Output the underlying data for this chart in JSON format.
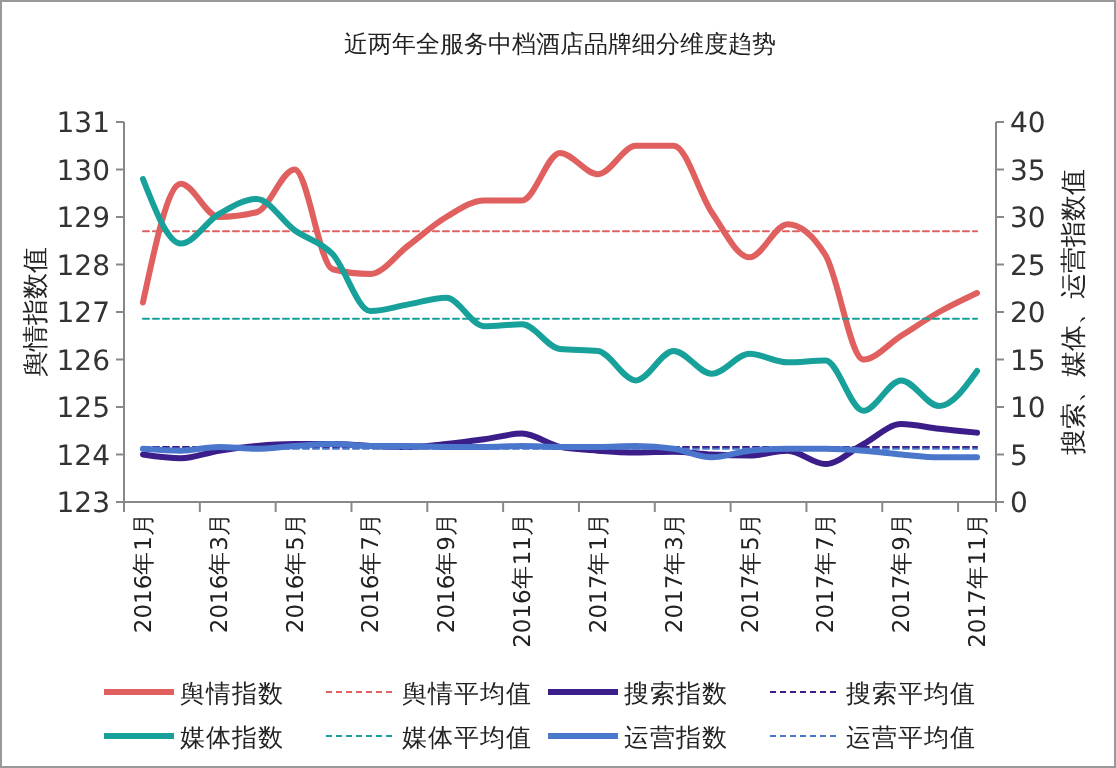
{
  "chart_data": {
    "type": "line",
    "title": "近两年全服务中档酒店品牌细分维度趋势",
    "ylabel": "舆情指数值",
    "y2label": "搜索、媒体、运营指数值",
    "categories": [
      "2016年1月",
      null,
      "2016年3月",
      null,
      "2016年5月",
      null,
      "2016年7月",
      null,
      "2016年9月",
      null,
      "2016年11月",
      null,
      "2017年1月",
      null,
      "2017年3月",
      null,
      "2017年5月",
      null,
      "2017年7月",
      null,
      "2017年9月",
      null,
      "2017年11月"
    ],
    "ylim": [
      123,
      131
    ],
    "yticks": [
      123,
      124,
      125,
      126,
      127,
      128,
      129,
      130,
      131
    ],
    "y2lim": [
      0,
      40
    ],
    "y2ticks": [
      0,
      5,
      10,
      15,
      20,
      25,
      30,
      35,
      40
    ],
    "legend": "bottom",
    "grid": false,
    "series": [
      {
        "name": "舆情指数",
        "color": "#e06060",
        "line_style": "solid",
        "values": [
          127.2,
          129.7,
          129.0,
          129.1,
          130.0,
          127.9,
          127.8,
          128.4,
          129.0,
          129.35,
          129.35,
          130.35,
          129.9,
          130.5,
          130.5,
          129.1,
          128.15,
          128.85,
          128.2,
          126.0,
          126.5,
          127.0,
          127.4
        ]
      },
      {
        "name": "舆情平均值",
        "color": "#e06060",
        "line_style": "dashed",
        "values": [
          128.7,
          128.7,
          128.7,
          128.7,
          128.7,
          128.7,
          128.7,
          128.7,
          128.7,
          128.7,
          128.7,
          128.7,
          128.7,
          128.7,
          128.7,
          128.7,
          128.7,
          128.7,
          128.7,
          128.7,
          128.7,
          128.7,
          128.7
        ]
      },
      {
        "name": "搜索指数",
        "color": "#3b1e8a",
        "line_style": "solid",
        "axis": "y2",
        "values": [
          5.0,
          4.6,
          5.4,
          5.9,
          6.1,
          6.1,
          5.9,
          5.8,
          6.1,
          6.6,
          7.2,
          5.8,
          5.4,
          5.2,
          5.3,
          5.0,
          4.9,
          5.4,
          4.0,
          6.1,
          8.2,
          7.7,
          7.3
        ]
      },
      {
        "name": "搜索平均值",
        "color": "#3b1e8a",
        "line_style": "dashed",
        "axis": "y2",
        "values": [
          5.8,
          5.8,
          5.8,
          5.8,
          5.8,
          5.8,
          5.8,
          5.8,
          5.8,
          5.8,
          5.8,
          5.8,
          5.8,
          5.8,
          5.8,
          5.8,
          5.8,
          5.8,
          5.8,
          5.8,
          5.8,
          5.8,
          5.8
        ]
      },
      {
        "name": "媒体指数",
        "color": "#17a19a",
        "line_style": "solid",
        "axis": "y2",
        "values": [
          34.0,
          27.2,
          30.3,
          31.9,
          28.6,
          26.1,
          20.1,
          20.8,
          21.5,
          18.5,
          18.7,
          16.1,
          15.9,
          12.8,
          15.9,
          13.5,
          15.6,
          14.7,
          14.9,
          9.6,
          12.8,
          10.1,
          13.8
        ]
      },
      {
        "name": "媒体平均值",
        "color": "#17a19a",
        "line_style": "dashed",
        "axis": "y2",
        "values": [
          19.3,
          19.3,
          19.3,
          19.3,
          19.3,
          19.3,
          19.3,
          19.3,
          19.3,
          19.3,
          19.3,
          19.3,
          19.3,
          19.3,
          19.3,
          19.3,
          19.3,
          19.3,
          19.3,
          19.3,
          19.3,
          19.3,
          19.3
        ]
      },
      {
        "name": "运营指数",
        "color": "#4a76cc",
        "line_style": "solid",
        "axis": "y2",
        "values": [
          5.6,
          5.4,
          5.8,
          5.6,
          5.9,
          6.1,
          5.9,
          5.9,
          5.8,
          5.8,
          5.9,
          5.8,
          5.8,
          5.9,
          5.6,
          4.7,
          5.4,
          5.6,
          5.6,
          5.4,
          5.0,
          4.7,
          4.7
        ]
      },
      {
        "name": "运营平均值",
        "color": "#4a76cc",
        "line_style": "dashed",
        "axis": "y2",
        "values": [
          5.6,
          5.6,
          5.6,
          5.6,
          5.6,
          5.6,
          5.6,
          5.6,
          5.6,
          5.6,
          5.6,
          5.6,
          5.6,
          5.6,
          5.6,
          5.6,
          5.6,
          5.6,
          5.6,
          5.6,
          5.6,
          5.6,
          5.6
        ]
      }
    ]
  }
}
